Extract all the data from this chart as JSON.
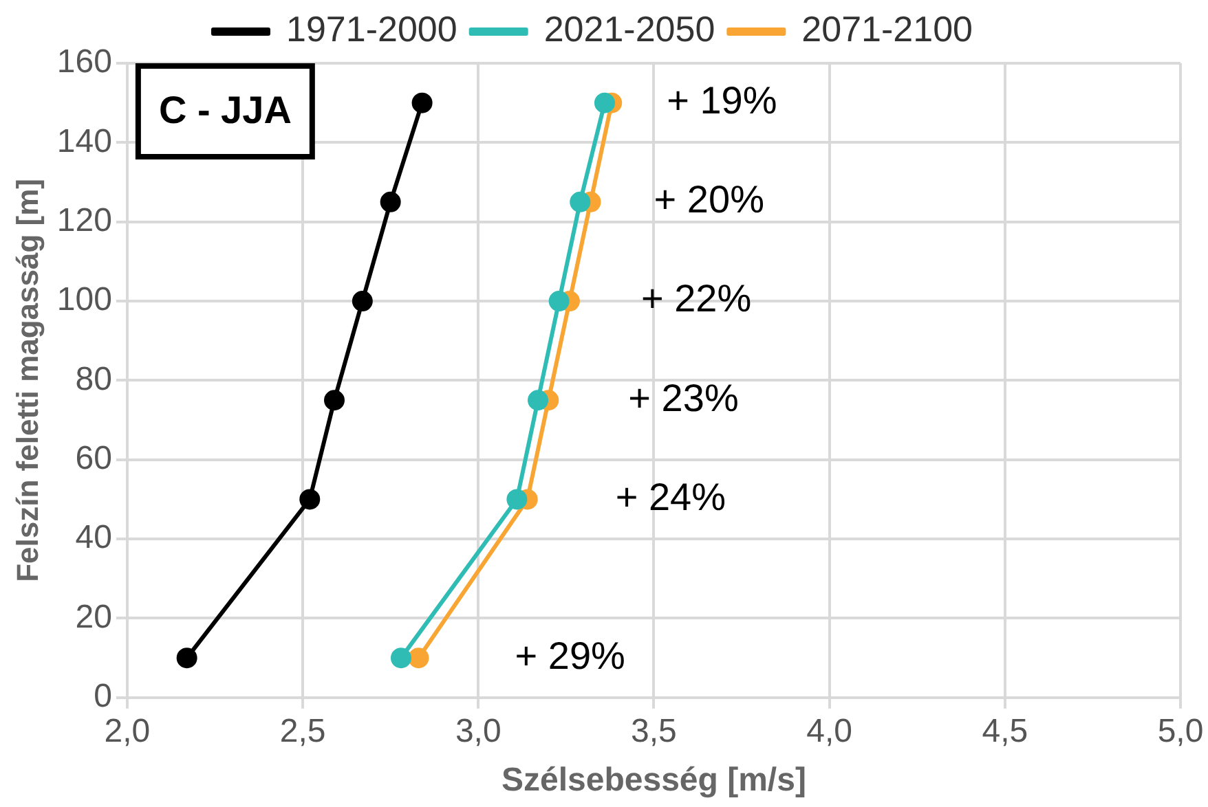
{
  "chart_data": {
    "type": "line",
    "xlabel": "Szélsebesség [m/s]",
    "ylabel": "Felszín feletti magasság [m]",
    "annotations": [
      "C - JJA",
      "+ 19%",
      "+ 20%",
      "+ 22%",
      "+ 23%",
      "+ 24%",
      "+ 29%"
    ],
    "series": [
      {
        "name": "1971-2000",
        "color": "#000000",
        "x": [
          2.17,
          2.52,
          2.59,
          2.67,
          2.75,
          2.84
        ],
        "values": [
          10,
          50,
          75,
          100,
          125,
          150
        ]
      },
      {
        "name": "2021-2050",
        "color": "#2ebcb4",
        "x": [
          2.78,
          3.11,
          3.17,
          3.23,
          3.29,
          3.36
        ],
        "values": [
          10,
          50,
          75,
          100,
          125,
          150
        ]
      },
      {
        "name": "2071-2100",
        "color": "#f9a533",
        "x": [
          2.83,
          3.14,
          3.2,
          3.26,
          3.32,
          3.38
        ],
        "values": [
          10,
          50,
          75,
          100,
          125,
          150
        ]
      }
    ],
    "xlim": [
      2,
      5
    ],
    "xticks": [
      {
        "value": 2,
        "label": "2,0"
      },
      {
        "value": 2.5,
        "label": "2,5"
      },
      {
        "value": 3,
        "label": "3,0"
      },
      {
        "value": 3.5,
        "label": "3,5"
      },
      {
        "value": 4,
        "label": "4,0"
      },
      {
        "value": 4.5,
        "label": "4,5"
      },
      {
        "value": 5,
        "label": "5,0"
      }
    ],
    "ylim": [
      0,
      160
    ],
    "yticks": [
      0,
      20,
      40,
      60,
      80,
      100,
      120,
      140,
      160
    ],
    "grid": true,
    "legend": "top",
    "marker": "circle",
    "line_style": "solid"
  }
}
